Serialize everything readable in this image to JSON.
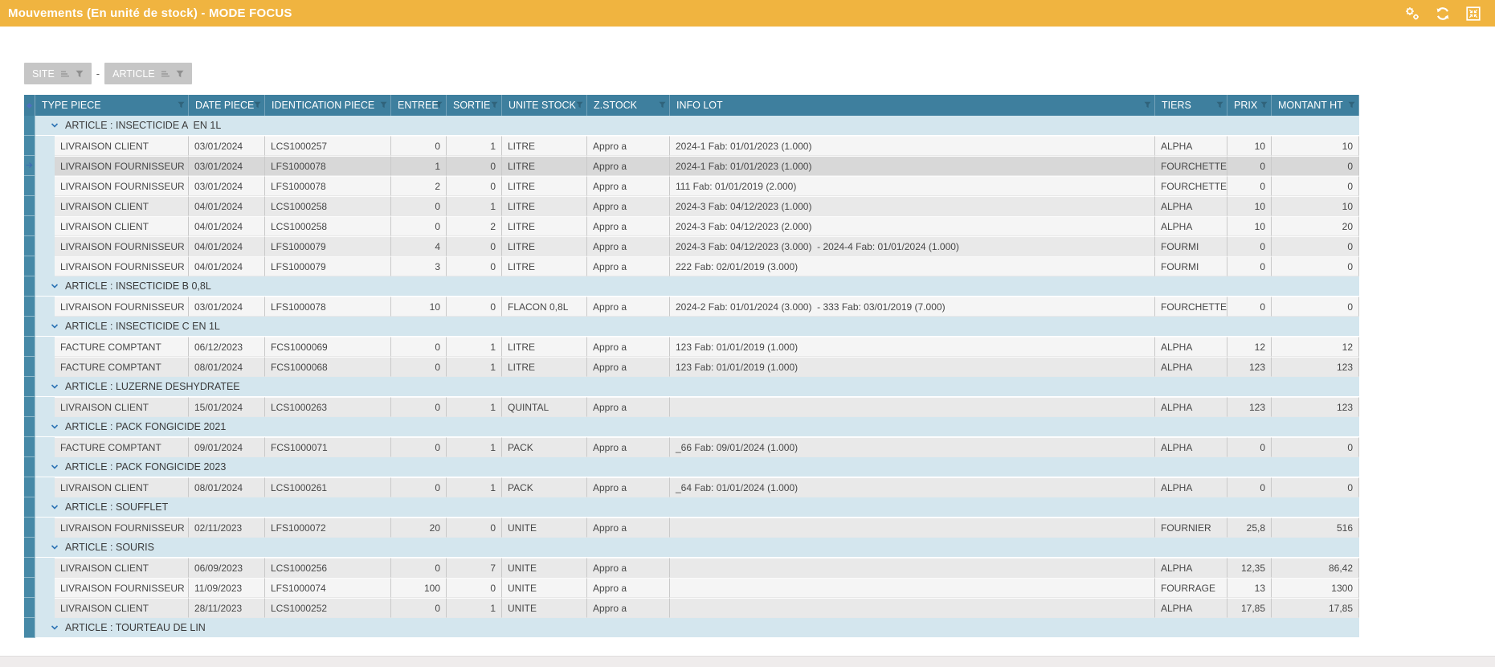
{
  "title_bar": {
    "title": "Mouvements (En unité de stock) - MODE FOCUS",
    "icons": [
      "gears-icon",
      "refresh-icon",
      "compress-icon"
    ]
  },
  "grouping": {
    "buttons": [
      {
        "label": "SITE",
        "icons": [
          "sort-bars-icon",
          "funnel-filter-icon"
        ]
      },
      {
        "label": "ARTICLE",
        "icons": [
          "sort-bars-icon",
          "funnel-filter-icon"
        ]
      }
    ],
    "separator": "-"
  },
  "table": {
    "columns": [
      "TYPE PIECE",
      "DATE PIECE",
      "IDENTICATION PIECE",
      "ENTREE",
      "SORTIE",
      "UNITE STOCK",
      "Z.STOCK",
      "INFO LOT",
      "TIERS",
      "PRIX",
      "MONTANT HT"
    ],
    "column_filter_icon": "funnel-filter-icon",
    "group_collapse_icon": "chevron-down-icon",
    "current_row_icon": "current-row-arrow-icon",
    "groups": [
      {
        "label": "ARTICLE : INSECTICIDE A  EN 1L",
        "rows": [
          {
            "shade": "a",
            "current": false,
            "cells": [
              "LIVRAISON CLIENT",
              "03/01/2024",
              "LCS1000257",
              "0",
              "1",
              "LITRE",
              "Appro a",
              "2024-1 Fab: 01/01/2023 (1.000)",
              "ALPHA",
              "10",
              "10"
            ]
          },
          {
            "shade": "b",
            "current": true,
            "cells": [
              "LIVRAISON FOURNISSEUR",
              "03/01/2024",
              "LFS1000078",
              "1",
              "0",
              "LITRE",
              "Appro a",
              "2024-1 Fab: 01/01/2023 (1.000)",
              "FOURCHETTE",
              "0",
              "0"
            ]
          },
          {
            "shade": "a",
            "current": false,
            "cells": [
              "LIVRAISON FOURNISSEUR",
              "03/01/2024",
              "LFS1000078",
              "2",
              "0",
              "LITRE",
              "Appro a",
              "111 Fab: 01/01/2019 (2.000)",
              "FOURCHETTE",
              "0",
              "0"
            ]
          },
          {
            "shade": "b",
            "current": false,
            "cells": [
              "LIVRAISON CLIENT",
              "04/01/2024",
              "LCS1000258",
              "0",
              "1",
              "LITRE",
              "Appro a",
              "2024-3 Fab: 04/12/2023 (1.000)",
              "ALPHA",
              "10",
              "10"
            ]
          },
          {
            "shade": "a",
            "current": false,
            "cells": [
              "LIVRAISON CLIENT",
              "04/01/2024",
              "LCS1000258",
              "0",
              "2",
              "LITRE",
              "Appro a",
              "2024-3 Fab: 04/12/2023 (2.000)",
              "ALPHA",
              "10",
              "20"
            ]
          },
          {
            "shade": "b",
            "current": false,
            "cells": [
              "LIVRAISON FOURNISSEUR",
              "04/01/2024",
              "LFS1000079",
              "4",
              "0",
              "LITRE",
              "Appro a",
              "2024-3 Fab: 04/12/2023 (3.000)  - 2024-4 Fab: 01/01/2024 (1.000)",
              "FOURMI",
              "0",
              "0"
            ]
          },
          {
            "shade": "a",
            "current": false,
            "cells": [
              "LIVRAISON FOURNISSEUR",
              "04/01/2024",
              "LFS1000079",
              "3",
              "0",
              "LITRE",
              "Appro a",
              "222 Fab: 02/01/2019 (3.000)",
              "FOURMI",
              "0",
              "0"
            ]
          }
        ]
      },
      {
        "label": "ARTICLE : INSECTICIDE B 0,8L",
        "rows": [
          {
            "shade": "a",
            "current": false,
            "cells": [
              "LIVRAISON FOURNISSEUR",
              "03/01/2024",
              "LFS1000078",
              "10",
              "0",
              "FLACON 0,8L",
              "Appro a",
              "2024-2 Fab: 01/01/2024 (3.000)  - 333 Fab: 03/01/2019 (7.000)",
              "FOURCHETTE",
              "0",
              "0"
            ]
          }
        ]
      },
      {
        "label": "ARTICLE : INSECTICIDE C EN 1L",
        "rows": [
          {
            "shade": "a",
            "current": false,
            "cells": [
              "FACTURE COMPTANT",
              "06/12/2023",
              "FCS1000069",
              "0",
              "1",
              "LITRE",
              "Appro a",
              "123 Fab: 01/01/2019 (1.000)",
              "ALPHA",
              "12",
              "12"
            ]
          },
          {
            "shade": "b",
            "current": false,
            "cells": [
              "FACTURE COMPTANT",
              "08/01/2024",
              "FCS1000068",
              "0",
              "1",
              "LITRE",
              "Appro a",
              "123 Fab: 01/01/2019 (1.000)",
              "ALPHA",
              "123",
              "123"
            ]
          }
        ]
      },
      {
        "label": "ARTICLE : LUZERNE DESHYDRATEE",
        "rows": [
          {
            "shade": "b",
            "current": false,
            "cells": [
              "LIVRAISON CLIENT",
              "15/01/2024",
              "LCS1000263",
              "0",
              "1",
              "QUINTAL",
              "Appro a",
              "",
              "ALPHA",
              "123",
              "123"
            ]
          }
        ]
      },
      {
        "label": "ARTICLE : PACK FONGICIDE 2021",
        "rows": [
          {
            "shade": "b",
            "current": false,
            "cells": [
              "FACTURE COMPTANT",
              "09/01/2024",
              "FCS1000071",
              "0",
              "1",
              "PACK",
              "Appro a",
              "_66 Fab: 09/01/2024 (1.000)",
              "ALPHA",
              "0",
              "0"
            ]
          }
        ]
      },
      {
        "label": "ARTICLE : PACK FONGICIDE 2023",
        "rows": [
          {
            "shade": "b",
            "current": false,
            "cells": [
              "LIVRAISON CLIENT",
              "08/01/2024",
              "LCS1000261",
              "0",
              "1",
              "PACK",
              "Appro a",
              "_64 Fab: 01/01/2024 (1.000)",
              "ALPHA",
              "0",
              "0"
            ]
          }
        ]
      },
      {
        "label": "ARTICLE : SOUFFLET",
        "rows": [
          {
            "shade": "b",
            "current": false,
            "cells": [
              "LIVRAISON FOURNISSEUR",
              "02/11/2023",
              "LFS1000072",
              "20",
              "0",
              "UNITE",
              "Appro a",
              "",
              "FOURNIER",
              "25,8",
              "516"
            ]
          }
        ]
      },
      {
        "label": "ARTICLE : SOURIS",
        "rows": [
          {
            "shade": "b",
            "current": false,
            "cells": [
              "LIVRAISON CLIENT",
              "06/09/2023",
              "LCS1000256",
              "0",
              "7",
              "UNITE",
              "Appro a",
              "",
              "ALPHA",
              "12,35",
              "86,42"
            ]
          },
          {
            "shade": "a",
            "current": false,
            "cells": [
              "LIVRAISON FOURNISSEUR",
              "11/09/2023",
              "LFS1000074",
              "100",
              "0",
              "UNITE",
              "Appro a",
              "",
              "FOURRAGE",
              "13",
              "1300"
            ]
          },
          {
            "shade": "b",
            "current": false,
            "cells": [
              "LIVRAISON CLIENT",
              "28/11/2023",
              "LCS1000252",
              "0",
              "1",
              "UNITE",
              "Appro a",
              "",
              "ALPHA",
              "17,85",
              "17,85"
            ]
          }
        ]
      },
      {
        "label": "ARTICLE : TOURTEAU DE LIN",
        "rows": []
      }
    ]
  },
  "colors": {
    "titlebar_bg": "#f0b440",
    "header_bg": "#3e7f9e",
    "strip_bg": "#4689a7",
    "group_row_bg": "#d4e6ee",
    "row_light": "#f5f5f5",
    "row_mid": "#e9e9e9",
    "row_current": "#d8d8d8",
    "button_bg": "#c6c6c6"
  }
}
